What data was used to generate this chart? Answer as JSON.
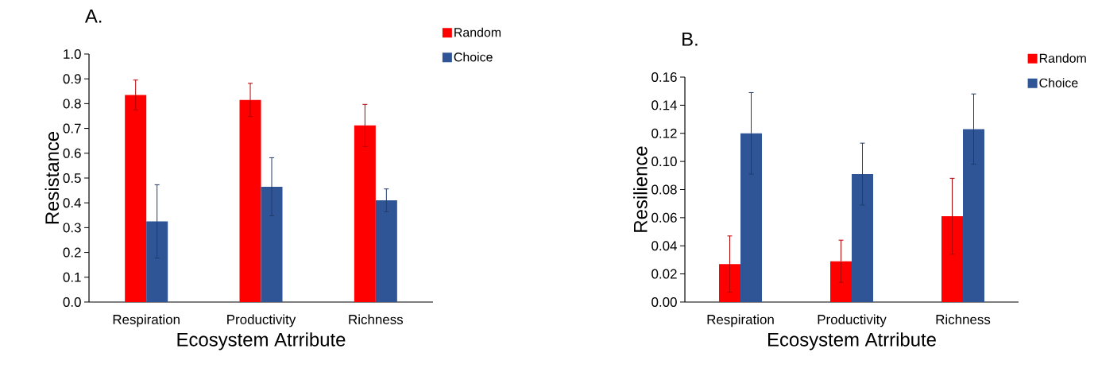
{
  "chart_data": [
    {
      "type": "bar",
      "title": "A.",
      "xlabel": "Ecosystem Atrribute",
      "ylabel": "Resistance",
      "categories": [
        "Respiration",
        "Productivity",
        "Richness"
      ],
      "series": [
        {
          "name": "Random",
          "color": "#ff0000",
          "values": [
            0.835,
            0.815,
            0.712
          ],
          "errors": [
            0.06,
            0.067,
            0.085
          ]
        },
        {
          "name": "Choice",
          "color": "#2f5597",
          "values": [
            0.325,
            0.465,
            0.41
          ],
          "errors": [
            0.148,
            0.117,
            0.046
          ]
        }
      ],
      "ylim": [
        0,
        1.0
      ],
      "yticks": [
        {
          "value": 0,
          "label": "0.0"
        },
        {
          "value": 0.1,
          "label": "0.1"
        },
        {
          "value": 0.2,
          "label": "0.2"
        },
        {
          "value": 0.3,
          "label": "0.3"
        },
        {
          "value": 0.4,
          "label": "0.4"
        },
        {
          "value": 0.5,
          "label": "0.5"
        },
        {
          "value": 0.6,
          "label": "0.6"
        },
        {
          "value": 0.7,
          "label": "0.7"
        },
        {
          "value": 0.8,
          "label": "0.8"
        },
        {
          "value": 0.9,
          "label": "0.9"
        },
        {
          "value": 1.0,
          "label": "1.0"
        }
      ],
      "legend": "top right"
    },
    {
      "type": "bar",
      "title": "B.",
      "xlabel": "Ecosystem Atrribute",
      "ylabel": "Resilience",
      "categories": [
        "Respiration",
        "Productivity",
        "Richness"
      ],
      "series": [
        {
          "name": "Random",
          "color": "#ff0000",
          "values": [
            0.027,
            0.029,
            0.061
          ],
          "errors": [
            0.02,
            0.015,
            0.027
          ]
        },
        {
          "name": "Choice",
          "color": "#2f5597",
          "values": [
            0.12,
            0.091,
            0.123
          ],
          "errors": [
            0.029,
            0.022,
            0.025
          ]
        }
      ],
      "ylim": [
        0,
        0.16
      ],
      "yticks": [
        {
          "value": 0,
          "label": "0.00"
        },
        {
          "value": 0.02,
          "label": "0.02"
        },
        {
          "value": 0.04,
          "label": "0.04"
        },
        {
          "value": 0.06,
          "label": "0.06"
        },
        {
          "value": 0.08,
          "label": "0.08"
        },
        {
          "value": 0.1,
          "label": "0.10"
        },
        {
          "value": 0.12,
          "label": "0.12"
        },
        {
          "value": 0.14,
          "label": "0.14"
        },
        {
          "value": 0.16,
          "label": "0.16"
        }
      ],
      "legend": "top right"
    }
  ]
}
